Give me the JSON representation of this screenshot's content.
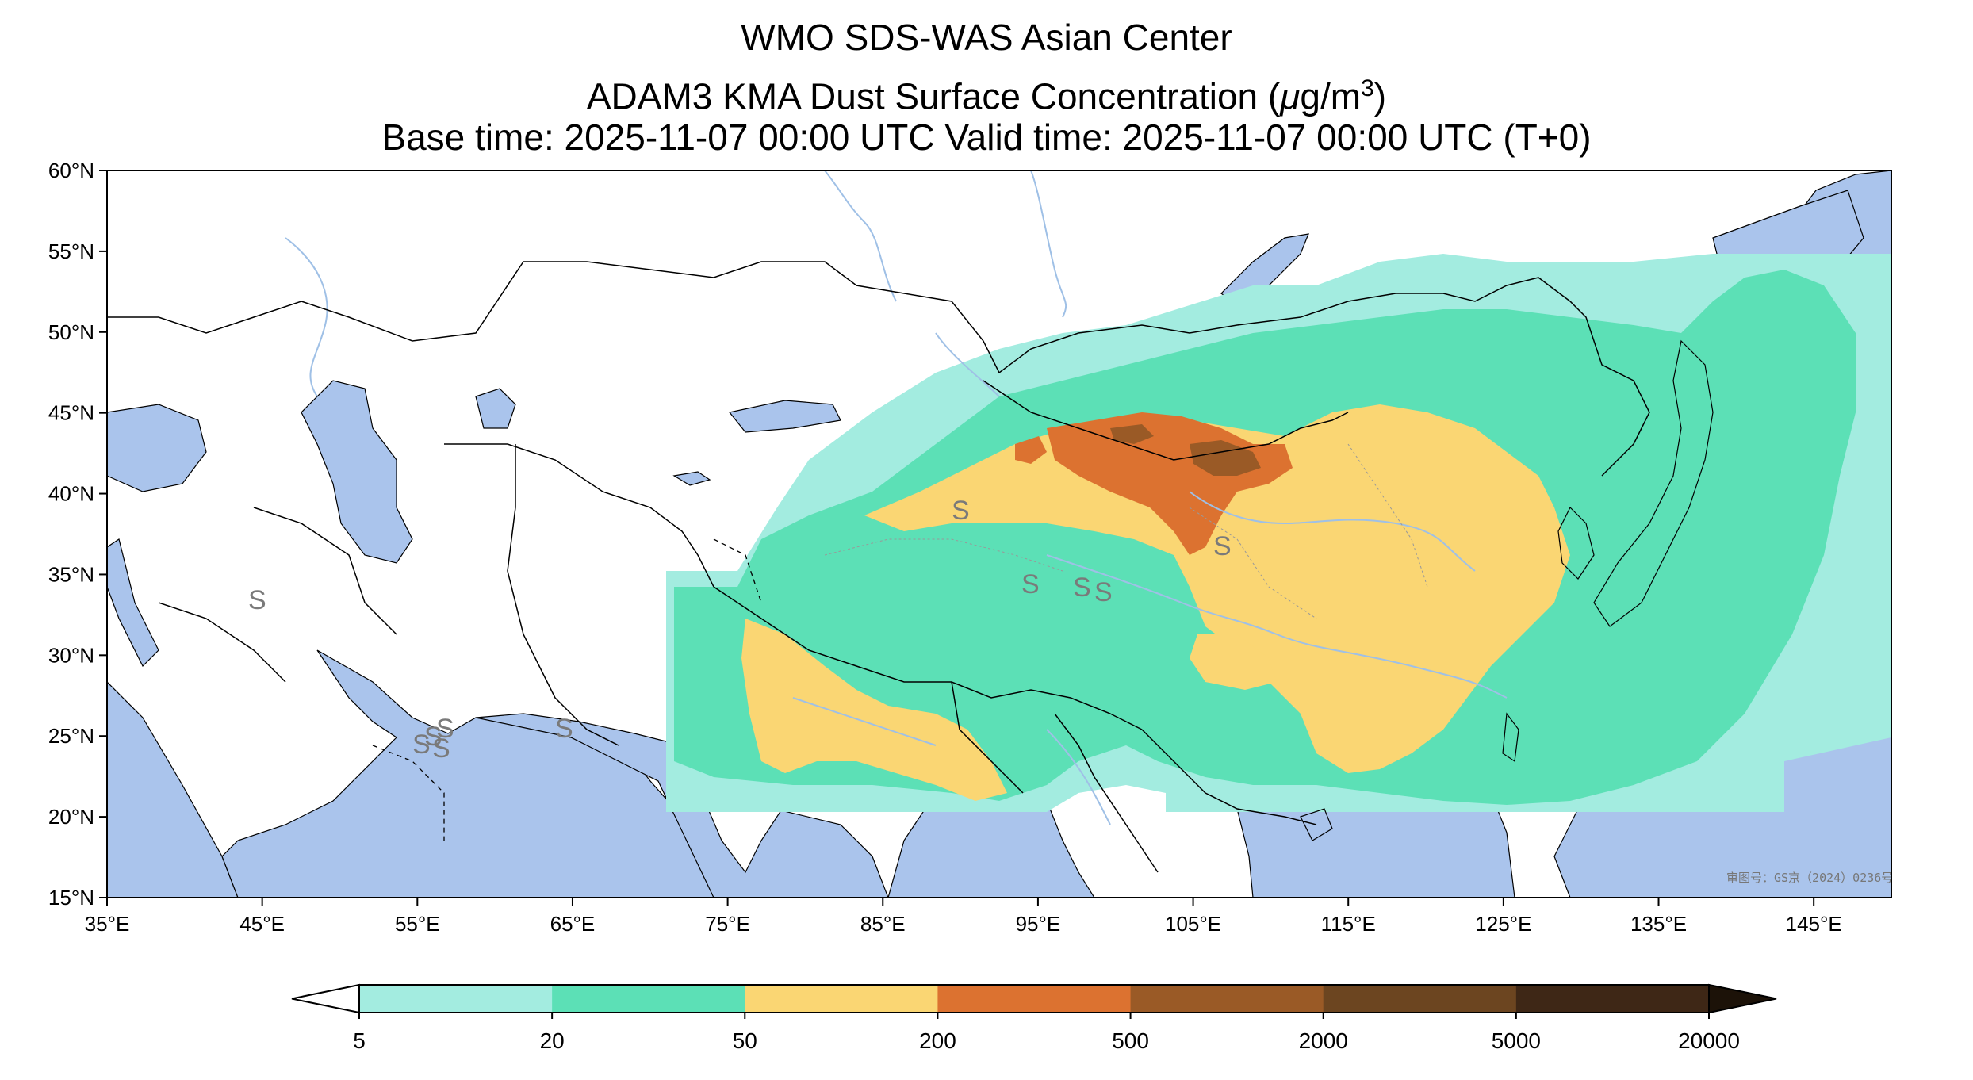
{
  "header": {
    "title_line1": "WMO SDS-WAS Asian Center",
    "title_line2_prefix": "ADAM3 KMA Dust Surface Concentration (",
    "title_line2_mu": "μ",
    "title_line2_unit": "g/m",
    "title_line2_exp": "3",
    "title_line2_suffix": ")",
    "title_line3": "Base time: 2025-11-07 00:00 UTC Valid time: 2025-11-07 00:00 UTC (T+0)"
  },
  "map": {
    "lon_range": [
      35,
      150
    ],
    "lat_range": [
      15,
      60
    ],
    "lat_ticks": [
      "60°N",
      "55°N",
      "50°N",
      "45°N",
      "40°N",
      "35°N",
      "30°N",
      "25°N",
      "20°N",
      "15°N"
    ],
    "lon_ticks": [
      "35°E",
      "45°E",
      "55°E",
      "65°E",
      "75°E",
      "85°E",
      "95°E",
      "105°E",
      "115°E",
      "125°E",
      "135°E",
      "145°E"
    ],
    "approval_text": "审图号：GS京（2024）0236号",
    "colors": {
      "ocean": "#aac4ec",
      "land": "#ffffff",
      "rivers": "#9fc0e6",
      "border": "#000000"
    }
  },
  "colorbar": {
    "levels": [
      "5",
      "20",
      "50",
      "200",
      "500",
      "2000",
      "5000",
      "20000"
    ],
    "colors": [
      "#a3ece0",
      "#5ce0b6",
      "#fad673",
      "#dc7230",
      "#9a5a26",
      "#6c4520",
      "#3e2716"
    ],
    "under_color": "#ffffff",
    "over_color": "#1c1208"
  }
}
